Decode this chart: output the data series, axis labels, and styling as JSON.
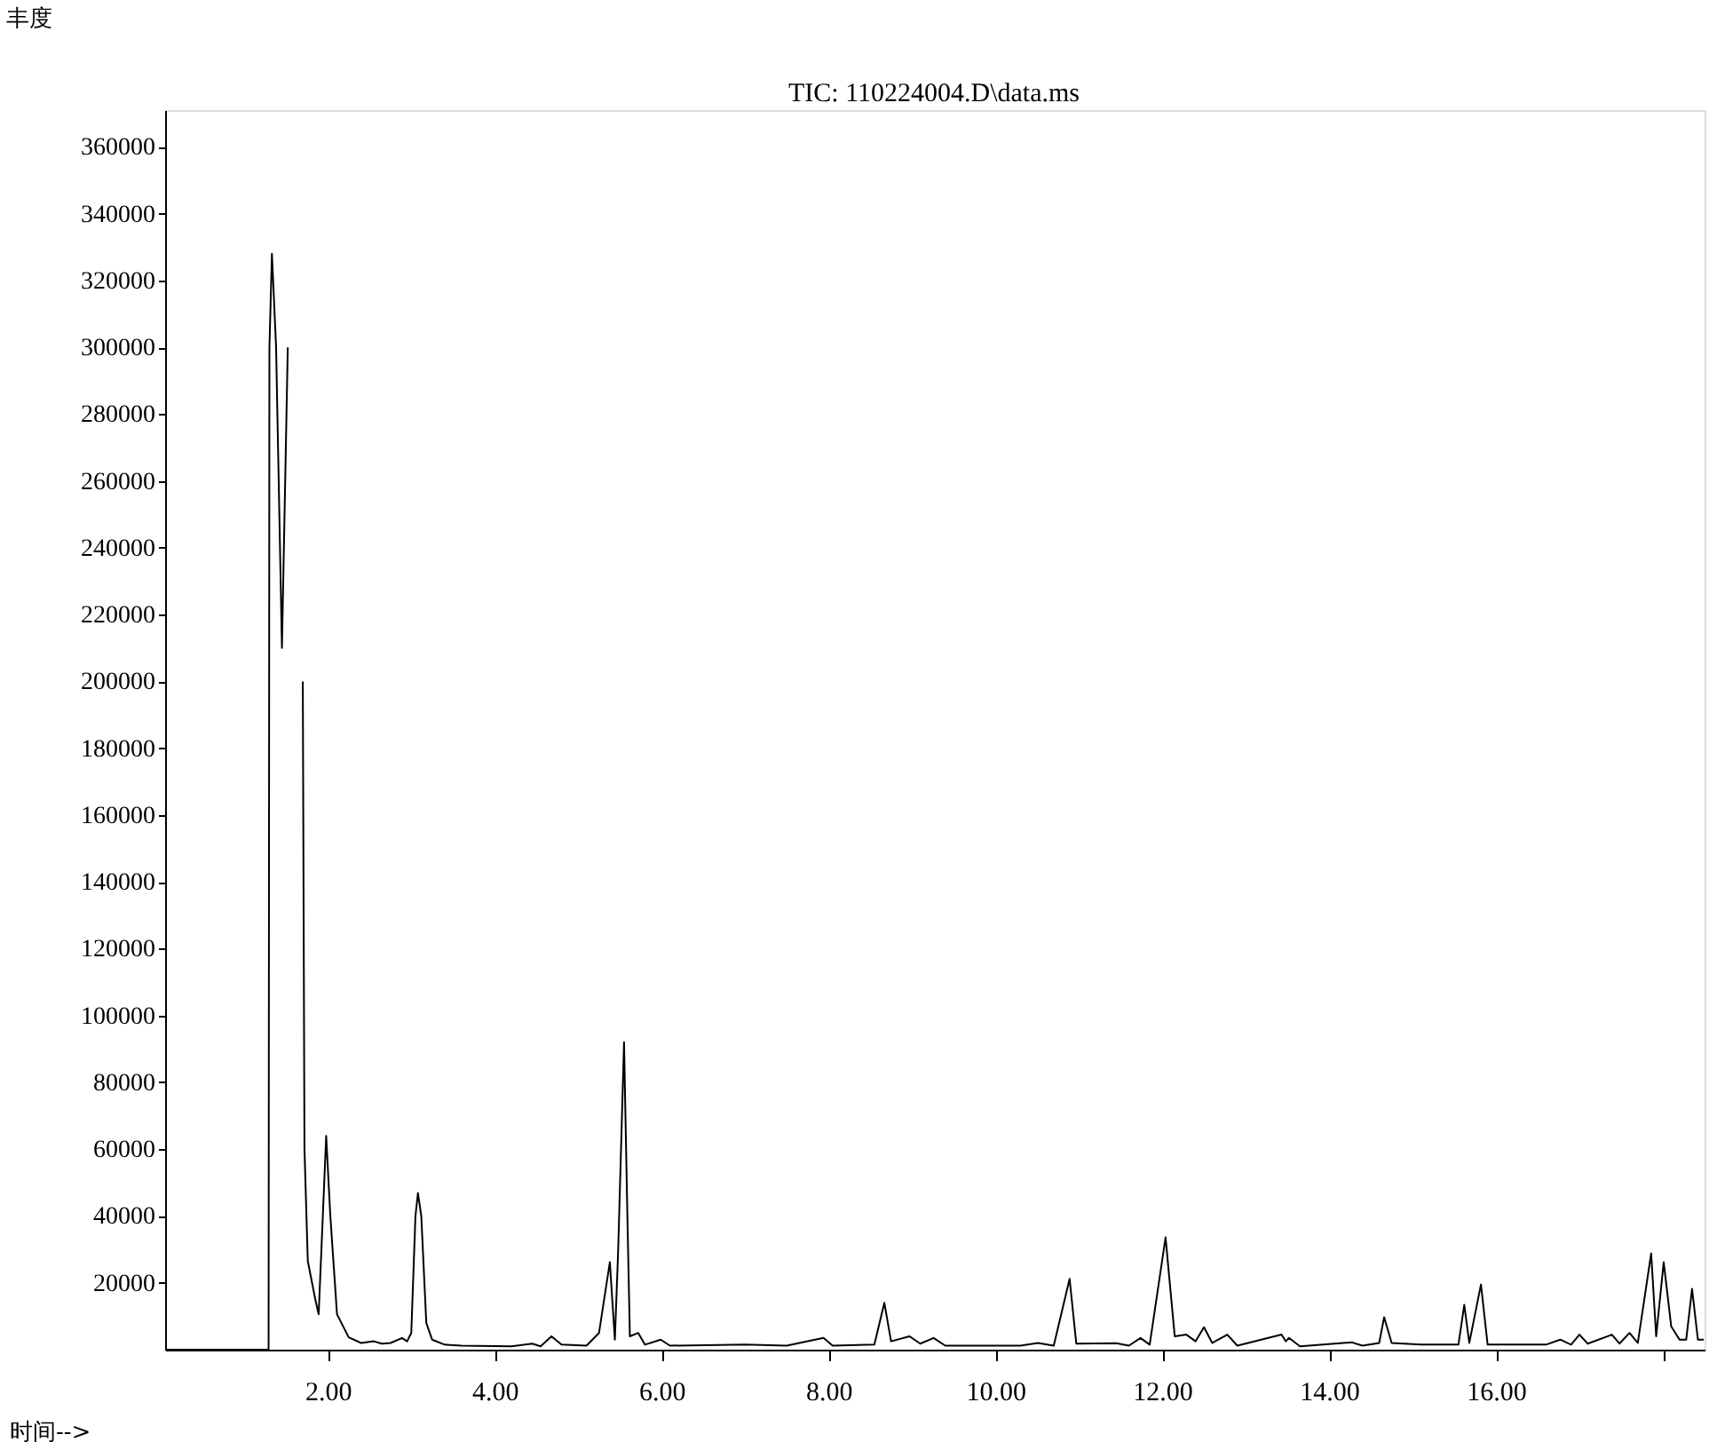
{
  "chart_data": {
    "type": "line",
    "title": "TIC: 110224004.D\\data.ms",
    "xlabel": "时间-->",
    "ylabel": "丰度",
    "xlim": [
      0.05,
      18.5
    ],
    "ylim": [
      0,
      371000
    ],
    "xticks": [
      {
        "value": 2,
        "label": "2.00"
      },
      {
        "value": 4,
        "label": "4.00"
      },
      {
        "value": 6,
        "label": "6.00"
      },
      {
        "value": 8,
        "label": "8.00"
      },
      {
        "value": 10,
        "label": "10.00"
      },
      {
        "value": 12,
        "label": "12.00"
      },
      {
        "value": 14,
        "label": "14.00"
      },
      {
        "value": 16,
        "label": "16.00"
      },
      {
        "value": 18,
        "label": null
      }
    ],
    "yticks": [
      20000,
      40000,
      60000,
      80000,
      100000,
      120000,
      140000,
      160000,
      180000,
      200000,
      220000,
      240000,
      260000,
      280000,
      300000,
      320000,
      340000,
      360000
    ],
    "grid": false,
    "marker": "none",
    "line_style": "solid",
    "x": [
      0.05,
      1.29,
      1.3,
      1.33,
      1.38,
      1.45,
      1.52,
      1.57,
      1.68,
      1.7,
      1.72,
      1.76,
      1.85,
      1.89,
      1.94,
      1.98,
      2.03,
      2.11,
      2.25,
      2.4,
      2.55,
      2.65,
      2.75,
      2.89,
      2.95,
      3.0,
      3.05,
      3.08,
      3.12,
      3.18,
      3.25,
      3.4,
      3.6,
      4.2,
      4.45,
      4.55,
      4.68,
      4.8,
      5.1,
      5.25,
      5.38,
      5.44,
      5.48,
      5.55,
      5.59,
      5.62,
      5.72,
      5.8,
      5.99,
      6.1,
      7.0,
      7.5,
      7.94,
      8.05,
      8.55,
      8.67,
      8.75,
      8.97,
      9.1,
      9.26,
      9.4,
      10.3,
      10.51,
      10.7,
      10.89,
      10.97,
      11.45,
      11.6,
      11.74,
      11.85,
      12.04,
      12.15,
      12.29,
      12.4,
      12.5,
      12.6,
      12.78,
      12.9,
      13.43,
      13.48,
      13.52,
      13.65,
      14.27,
      14.4,
      14.6,
      14.66,
      14.75,
      15.1,
      15.55,
      15.62,
      15.68,
      15.82,
      15.9,
      16.6,
      16.77,
      16.9,
      17.0,
      17.1,
      17.39,
      17.48,
      17.6,
      17.7,
      17.86,
      17.92,
      18.01,
      18.1,
      18.2,
      18.28,
      18.35,
      18.42,
      18.49
    ],
    "series": [
      {
        "color": "#000000",
        "values": [
          0,
          0,
          300000,
          328000,
          300000,
          210000,
          300000,
          null,
          null,
          200000,
          60000,
          26500,
          15000,
          10600,
          40000,
          64000,
          40000,
          10600,
          3700,
          2000,
          2500,
          1800,
          2000,
          3500,
          2500,
          5000,
          40000,
          46900,
          40000,
          8000,
          3000,
          1500,
          1200,
          1000,
          1800,
          1000,
          4000,
          1500,
          1200,
          5000,
          26200,
          3000,
          30000,
          92000,
          40000,
          4000,
          5000,
          1500,
          3000,
          1200,
          1500,
          1200,
          3500,
          1200,
          1500,
          14000,
          2500,
          4000,
          1800,
          3500,
          1200,
          1200,
          2000,
          1200,
          21200,
          1800,
          1900,
          1200,
          3500,
          1500,
          33600,
          4000,
          4500,
          2500,
          6700,
          2000,
          4500,
          1200,
          4500,
          2500,
          3500,
          1000,
          2200,
          1200,
          2000,
          9700,
          2000,
          1500,
          1500,
          13400,
          2000,
          19500,
          1500,
          1500,
          3000,
          1500,
          4500,
          1800,
          4500,
          1800,
          5000,
          2000,
          28800,
          4000,
          26200,
          7000,
          3000,
          3000,
          18200,
          3000,
          3000
        ]
      }
    ]
  }
}
